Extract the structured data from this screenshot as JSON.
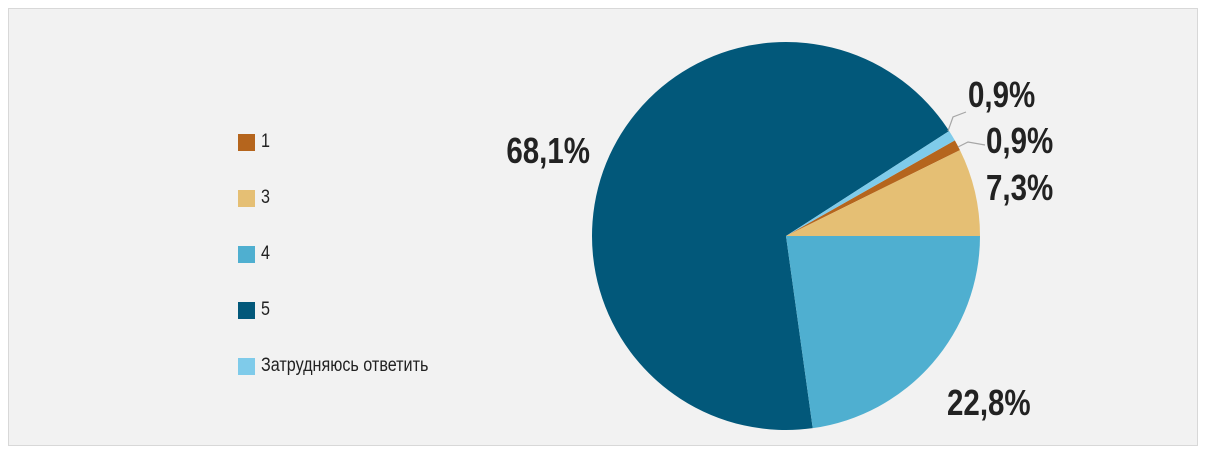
{
  "chart_data": {
    "type": "pie",
    "title": "",
    "categories": [
      "1",
      "3",
      "4",
      "5",
      "Затрудняюсь ответить"
    ],
    "values": [
      0.9,
      7.3,
      22.8,
      68.1,
      0.9
    ],
    "value_labels": [
      "0,9%",
      "7,3%",
      "22,8%",
      "68,1%",
      "0,9%"
    ],
    "colors": [
      "#b5651d",
      "#e5bf74",
      "#4fafd0",
      "#02587a",
      "#7fcbea"
    ],
    "legend_position": "left"
  }
}
